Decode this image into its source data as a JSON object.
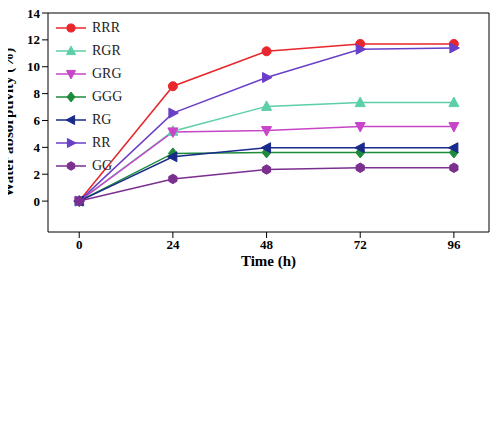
{
  "chart_data": {
    "type": "line",
    "x_label": "Time (h)",
    "y_label": "Water absorptivity (%)",
    "x": [
      0,
      24,
      48,
      72,
      96
    ],
    "series": [
      {
        "name": "RRR",
        "color": "#e8262b",
        "marker": "circle",
        "values": [
          0,
          8.55,
          11.15,
          11.7,
          11.7
        ]
      },
      {
        "name": "RGR",
        "color": "#5ccfa8",
        "marker": "triangle",
        "values": [
          0,
          5.2,
          7.05,
          7.33,
          7.33
        ]
      },
      {
        "name": "GRG",
        "color": "#c845c8",
        "marker": "triangle-down",
        "values": [
          0,
          5.15,
          5.25,
          5.55,
          5.55
        ]
      },
      {
        "name": "GGG",
        "color": "#1e8a3c",
        "marker": "diamond",
        "values": [
          0,
          3.55,
          3.62,
          3.62,
          3.62
        ]
      },
      {
        "name": "RG",
        "color": "#1a2a8a",
        "marker": "triangle-left",
        "values": [
          0,
          3.3,
          3.97,
          3.97,
          3.97
        ]
      },
      {
        "name": "RR",
        "color": "#6a3fc8",
        "marker": "triangle-right",
        "values": [
          0,
          6.55,
          9.2,
          11.3,
          11.4
        ]
      },
      {
        "name": "GG",
        "color": "#7b2f8f",
        "marker": "hexagon",
        "values": [
          0,
          1.65,
          2.35,
          2.48,
          2.48
        ]
      }
    ],
    "xlim": [
      -8,
      105
    ],
    "ylim": [
      -2.3,
      14
    ],
    "xticks": [
      0,
      24,
      48,
      72,
      96
    ],
    "yticks": [
      0,
      2,
      4,
      6,
      8,
      10,
      12,
      14
    ],
    "legend": "upper left",
    "grid": false
  }
}
